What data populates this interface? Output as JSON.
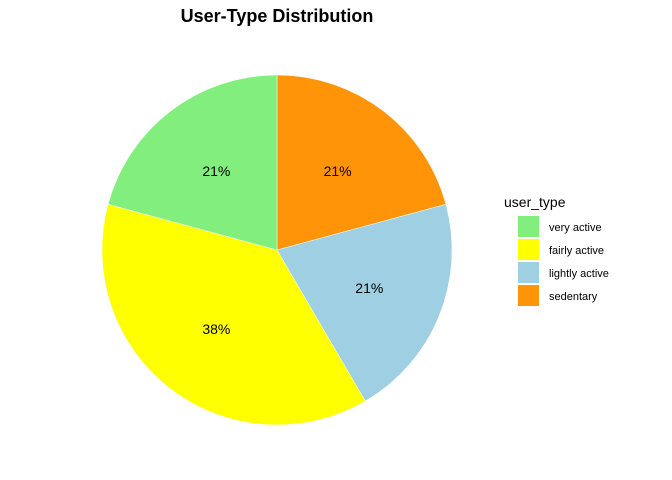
{
  "chart_data": {
    "type": "pie",
    "title": "User-Type Distribution",
    "legend_title": "user_type",
    "legend_position": "right",
    "categories": [
      "very active",
      "fairly active",
      "lightly active",
      "sedentary"
    ],
    "values": [
      21,
      38,
      21,
      21
    ],
    "labels": [
      "21%",
      "38%",
      "21%",
      "21%"
    ],
    "colors": [
      "#82EE7E",
      "#FFFF00",
      "#9ECFE2",
      "#FF9408"
    ],
    "slice_order_clockwise_from_top": [
      "sedentary",
      "lightly active",
      "fairly active",
      "very active"
    ]
  }
}
